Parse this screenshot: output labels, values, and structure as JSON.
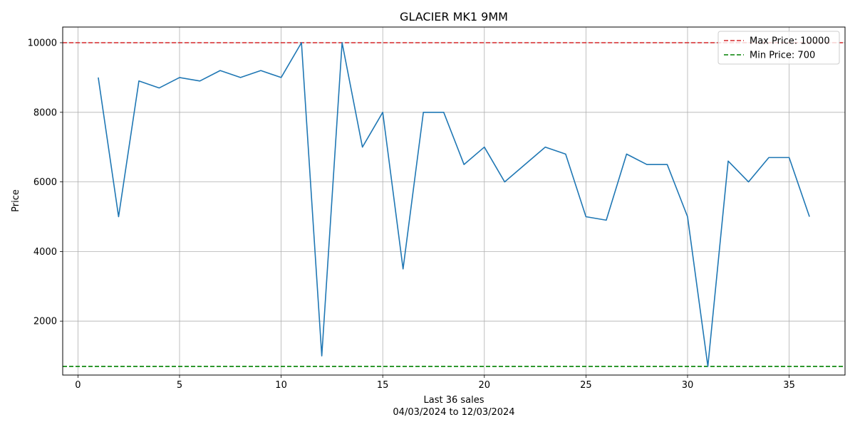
{
  "chart_data": {
    "type": "line",
    "title": "GLACIER MK1 9MM",
    "xlabel": "Last 36 sales",
    "xlabel_sub": "04/03/2024 to 12/03/2024",
    "ylabel": "Price",
    "xlim": [
      -0.75,
      37.75
    ],
    "ylim": [
      450,
      10450
    ],
    "x_ticks": [
      0,
      5,
      10,
      15,
      20,
      25,
      30,
      35
    ],
    "y_ticks": [
      2000,
      4000,
      6000,
      8000,
      10000
    ],
    "grid": true,
    "legend_position": "top-right",
    "series": [
      {
        "name": "",
        "color": "#1f77b4",
        "x": [
          1,
          2,
          3,
          4,
          5,
          6,
          7,
          8,
          9,
          10,
          11,
          12,
          13,
          14,
          15,
          16,
          17,
          18,
          19,
          20,
          21,
          22,
          23,
          24,
          25,
          26,
          27,
          28,
          29,
          30,
          31,
          32,
          33,
          34,
          35,
          36
        ],
        "values": [
          9000,
          5000,
          8900,
          8700,
          9000,
          8900,
          9200,
          9000,
          9200,
          9000,
          10000,
          1000,
          10000,
          7000,
          8000,
          3500,
          8000,
          8000,
          6500,
          7000,
          6000,
          6500,
          7000,
          6800,
          5000,
          4900,
          6800,
          6500,
          6500,
          5000,
          700,
          6600,
          6000,
          6700,
          6700,
          5000
        ]
      }
    ],
    "reference_lines": [
      {
        "name": "Max Price: 10000",
        "value": 10000,
        "color": "#d62728",
        "style": "dashed"
      },
      {
        "name": "Min Price: 700",
        "value": 700,
        "color": "#008000",
        "style": "dashed"
      }
    ]
  }
}
